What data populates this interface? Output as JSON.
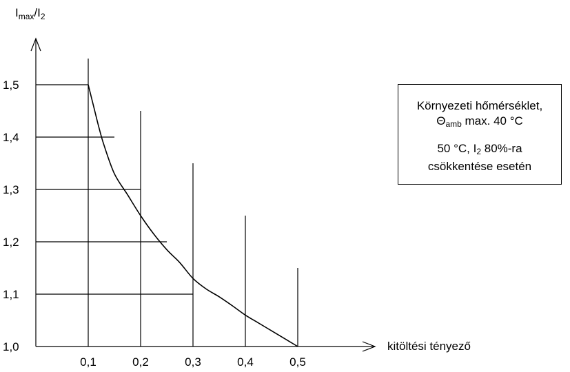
{
  "chart_data": {
    "type": "line",
    "x_axis": {
      "label": "kitöltési tényező",
      "ticks": [
        "0,1",
        "0,2",
        "0,3",
        "0,4",
        "0,5"
      ],
      "tick_values": [
        0.1,
        0.2,
        0.3,
        0.4,
        0.5
      ]
    },
    "y_axis": {
      "label_main": "I",
      "label_sub": "max",
      "label_sep": "/I",
      "label_sub2": "2",
      "ticks": [
        "1,0",
        "1,1",
        "1,2",
        "1,3",
        "1,4",
        "1,5"
      ],
      "tick_values": [
        1.0,
        1.1,
        1.2,
        1.3,
        1.4,
        1.5
      ]
    },
    "xlim": [
      0,
      0.5
    ],
    "ylim": [
      1.0,
      1.55
    ],
    "grid": true,
    "series": [
      {
        "x": [
          0.1,
          0.11,
          0.12,
          0.13,
          0.15,
          0.175,
          0.2,
          0.225,
          0.25,
          0.275,
          0.3,
          0.325,
          0.35,
          0.375,
          0.4,
          0.425,
          0.45,
          0.475,
          0.5
        ],
        "y": [
          1.5,
          1.46,
          1.42,
          1.385,
          1.33,
          1.29,
          1.25,
          1.215,
          1.185,
          1.16,
          1.13,
          1.11,
          1.095,
          1.078,
          1.06,
          1.045,
          1.03,
          1.015,
          1.0
        ]
      }
    ],
    "annotations": {
      "line1": "Környezeti hőmérséklet,",
      "line2_prefix": "Θ",
      "line2_sub": "amb",
      "line2_suffix": " max. 40 °C",
      "line3_prefix": "50 °C, I",
      "line3_sub": "2",
      "line3_suffix": " 80%-ra",
      "line4": "csökkentése esetén"
    }
  }
}
